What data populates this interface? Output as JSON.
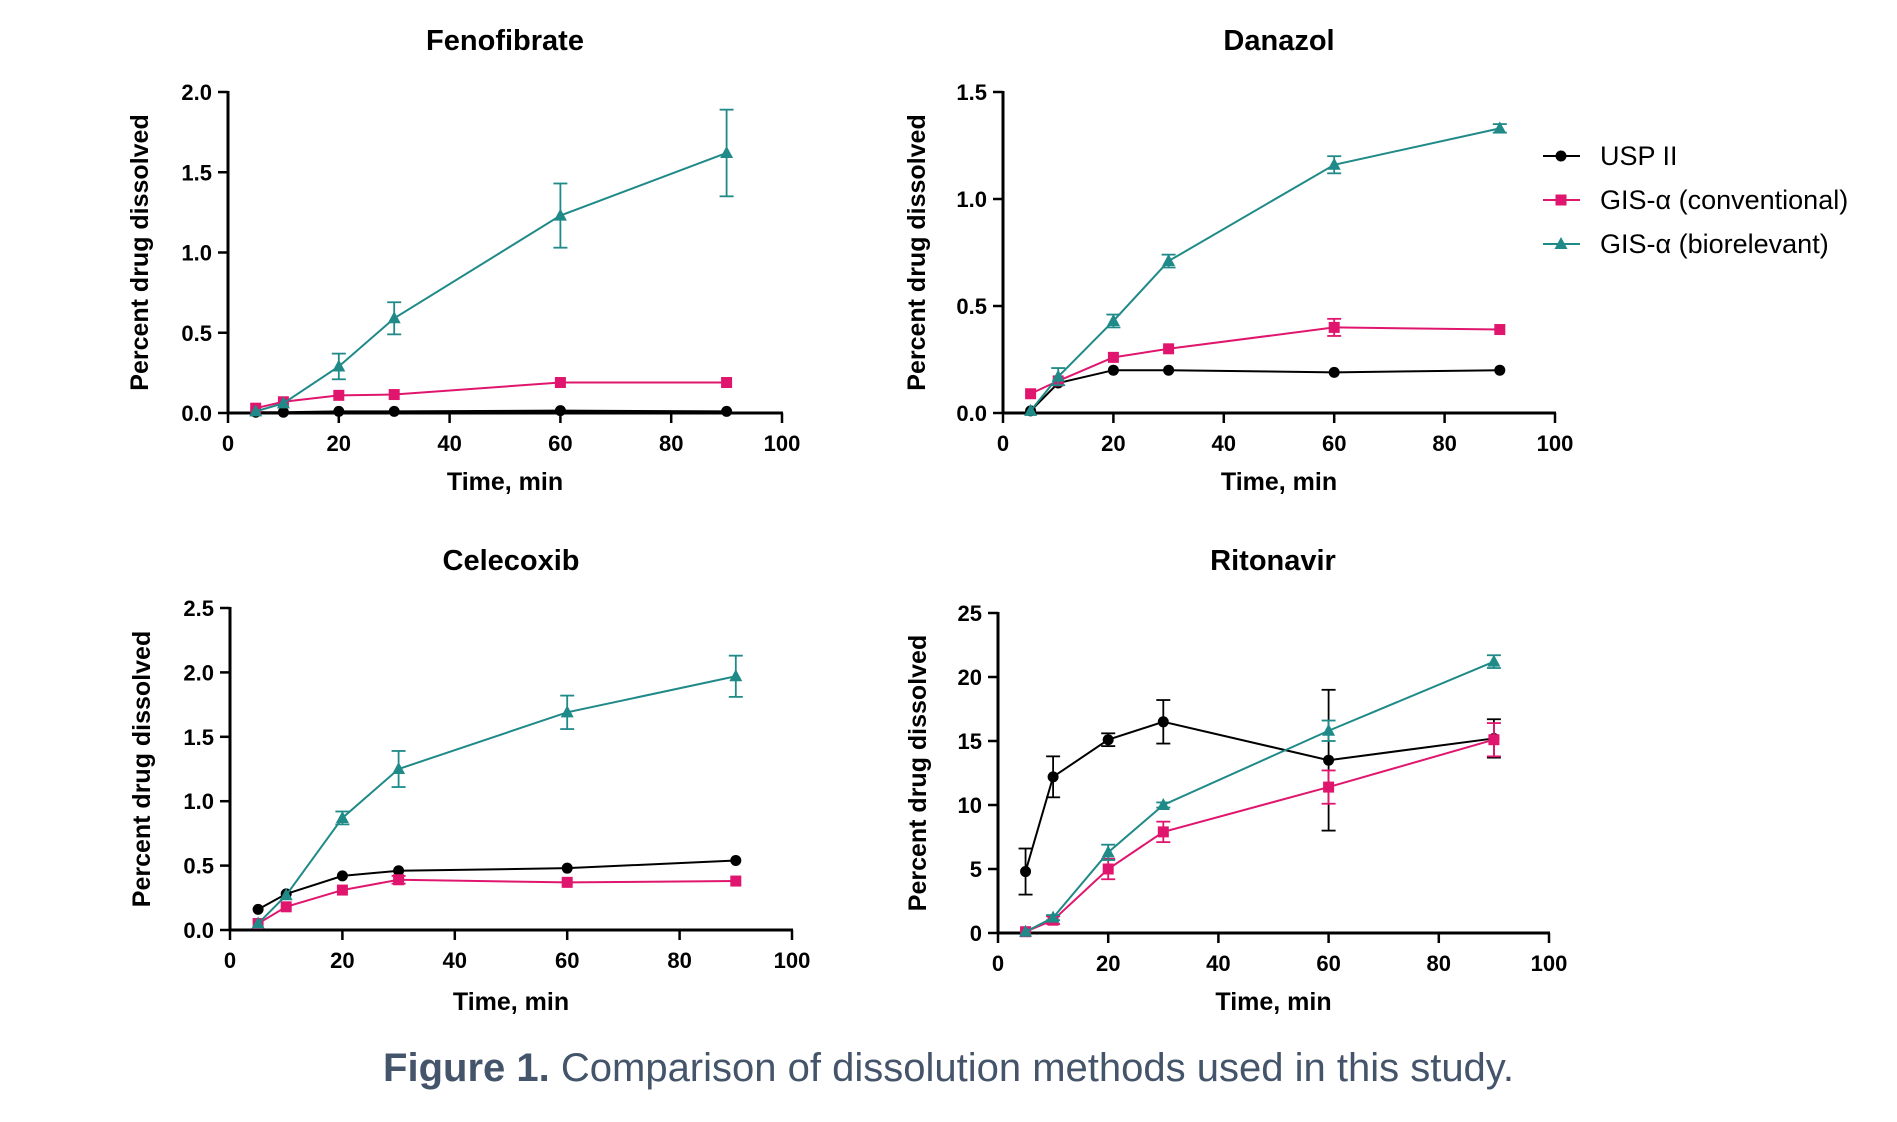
{
  "caption": {
    "label": "Figure 1.",
    "text": " Comparison of dissolution methods used in this study."
  },
  "legend": {
    "placement": "right",
    "items": [
      {
        "name": "USP II",
        "color": "#000000",
        "marker": "circle"
      },
      {
        "name": "GIS-α (conventional)",
        "color": "#e0166e",
        "marker": "square"
      },
      {
        "name": "GIS-α (biorelevant)",
        "color": "#1f8a88",
        "marker": "triangle"
      }
    ]
  },
  "chart_data": [
    {
      "type": "line",
      "title": "Fenofibrate",
      "xlabel": "Time, min",
      "ylabel": "Percent drug dissolved",
      "xlim": [
        0,
        100
      ],
      "ylim": [
        0,
        2.0
      ],
      "xticks": [
        "0",
        "20",
        "40",
        "60",
        "80",
        "100"
      ],
      "yticks": [
        "0.0",
        "0.5",
        "1.0",
        "1.5",
        "2.0"
      ],
      "x": [
        5,
        10,
        20,
        30,
        60,
        90
      ],
      "series": [
        {
          "name": "USP II",
          "values": [
            0.005,
            0.005,
            0.01,
            0.01,
            0.015,
            0.01
          ],
          "errors": [
            0,
            0,
            0,
            0,
            0,
            0
          ]
        },
        {
          "name": "GIS-α (conventional)",
          "values": [
            0.03,
            0.07,
            0.11,
            0.115,
            0.19,
            0.19
          ],
          "errors": [
            0,
            0,
            0,
            0,
            0,
            0
          ]
        },
        {
          "name": "GIS-α (biorelevant)",
          "values": [
            0.01,
            0.06,
            0.29,
            0.59,
            1.23,
            1.62
          ],
          "errors": [
            0,
            0,
            0.08,
            0.1,
            0.2,
            0.27
          ]
        }
      ]
    },
    {
      "type": "line",
      "title": "Danazol",
      "xlabel": "Time, min",
      "ylabel": "Percent drug dissolved",
      "xlim": [
        0,
        100
      ],
      "ylim": [
        0,
        1.5
      ],
      "xticks": [
        "0",
        "20",
        "40",
        "60",
        "80",
        "100"
      ],
      "yticks": [
        "0.0",
        "0.5",
        "1.0",
        "1.5"
      ],
      "x": [
        5,
        10,
        20,
        30,
        60,
        90
      ],
      "series": [
        {
          "name": "USP II",
          "values": [
            0.01,
            0.14,
            0.2,
            0.2,
            0.19,
            0.2
          ],
          "errors": [
            0,
            0,
            0,
            0,
            0,
            0
          ]
        },
        {
          "name": "GIS-α (conventional)",
          "values": [
            0.09,
            0.15,
            0.26,
            0.3,
            0.4,
            0.39
          ],
          "errors": [
            0,
            0,
            0,
            0,
            0.04,
            0
          ]
        },
        {
          "name": "GIS-α (biorelevant)",
          "values": [
            0.01,
            0.17,
            0.43,
            0.71,
            1.16,
            1.33
          ],
          "errors": [
            0,
            0.04,
            0.03,
            0.03,
            0.04,
            0.02
          ]
        }
      ]
    },
    {
      "type": "line",
      "title": "Celecoxib",
      "xlabel": "Time, min",
      "ylabel": "Percent drug dissolved",
      "xlim": [
        0,
        100
      ],
      "ylim": [
        0,
        2.5
      ],
      "xticks": [
        "0",
        "20",
        "40",
        "60",
        "80",
        "100"
      ],
      "yticks": [
        "0.0",
        "0.5",
        "1.0",
        "1.5",
        "2.0",
        "2.5"
      ],
      "x": [
        5,
        10,
        20,
        30,
        60,
        90
      ],
      "series": [
        {
          "name": "USP II",
          "values": [
            0.16,
            0.28,
            0.42,
            0.46,
            0.48,
            0.54
          ],
          "errors": [
            0,
            0,
            0,
            0,
            0,
            0
          ]
        },
        {
          "name": "GIS-α (conventional)",
          "values": [
            0.05,
            0.18,
            0.31,
            0.39,
            0.37,
            0.38
          ],
          "errors": [
            0,
            0,
            0,
            0.03,
            0,
            0
          ]
        },
        {
          "name": "GIS-α (biorelevant)",
          "values": [
            0.05,
            0.27,
            0.87,
            1.25,
            1.69,
            1.97
          ],
          "errors": [
            0,
            0,
            0.05,
            0.14,
            0.13,
            0.16
          ]
        }
      ]
    },
    {
      "type": "line",
      "title": "Ritonavir",
      "xlabel": "Time, min",
      "ylabel": "Percent drug dissolved",
      "xlim": [
        0,
        100
      ],
      "ylim": [
        0,
        25
      ],
      "xticks": [
        "0",
        "20",
        "40",
        "60",
        "80",
        "100"
      ],
      "yticks": [
        "0",
        "5",
        "10",
        "15",
        "20",
        "25"
      ],
      "x": [
        5,
        10,
        20,
        30,
        60,
        90
      ],
      "series": [
        {
          "name": "USP II",
          "values": [
            4.8,
            12.2,
            15.1,
            16.5,
            13.5,
            15.2
          ],
          "errors": [
            1.8,
            1.6,
            0.5,
            1.7,
            5.5,
            1.5
          ]
        },
        {
          "name": "GIS-α (conventional)",
          "values": [
            0.1,
            1.0,
            5.0,
            7.9,
            11.4,
            15.1
          ],
          "errors": [
            0,
            0.3,
            0.8,
            0.8,
            1.3,
            1.3
          ]
        },
        {
          "name": "GIS-α (biorelevant)",
          "values": [
            0.1,
            1.2,
            6.3,
            10.0,
            15.8,
            21.2
          ],
          "errors": [
            0,
            0.2,
            0.6,
            0.2,
            0.8,
            0.5
          ]
        }
      ]
    }
  ]
}
